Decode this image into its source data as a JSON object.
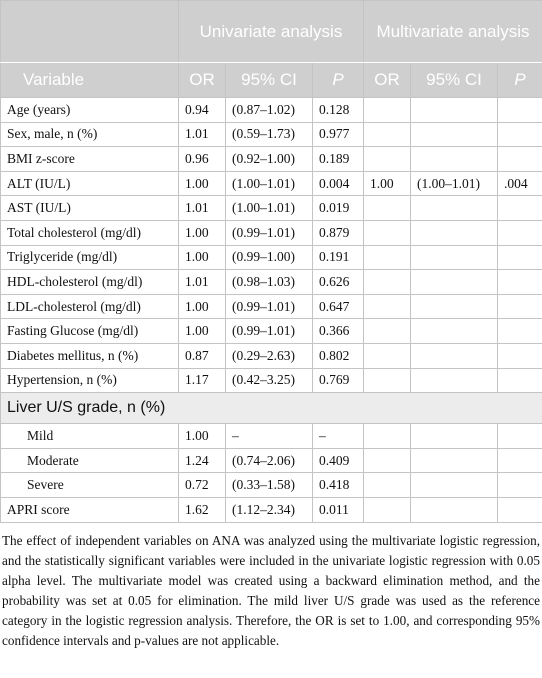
{
  "table": {
    "header": {
      "groups": [
        "Univariate analysis",
        "Multivariate analysis"
      ],
      "columns": [
        "Variable",
        "OR",
        "95% CI",
        "P",
        "OR",
        "95% CI",
        "P"
      ]
    },
    "rows": [
      [
        "Age (years)",
        "0.94",
        "(0.87–1.02)",
        "0.128",
        null,
        null,
        null
      ],
      [
        "Sex, male, n (%)",
        "1.01",
        "(0.59–1.73)",
        "0.977",
        null,
        null,
        null
      ],
      [
        "BMI z-score",
        "0.96",
        "(0.92–1.00)",
        "0.189",
        null,
        null,
        null
      ],
      [
        "ALT (IU/L)",
        "1.00",
        "(1.00–1.01)",
        "0.004",
        "1.00",
        "(1.00–1.01)",
        ".004"
      ],
      [
        "AST (IU/L)",
        "1.01",
        "(1.00–1.01)",
        "0.019",
        null,
        null,
        null
      ],
      [
        "Total cholesterol (mg/dl)",
        "1.00",
        "(0.99–1.01)",
        "0.879",
        null,
        null,
        null
      ],
      [
        "Triglyceride (mg/dl)",
        "1.00",
        "(0.99–1.00)",
        "0.191",
        null,
        null,
        null
      ],
      [
        "HDL-cholesterol (mg/dl)",
        "1.01",
        "(0.98–1.03)",
        "0.626",
        null,
        null,
        null
      ],
      [
        "LDL-cholesterol (mg/dl)",
        "1.00",
        "(0.99–1.01)",
        "0.647",
        null,
        null,
        null
      ],
      [
        "Fasting Glucose (mg/dl)",
        "1.00",
        "(0.99–1.01)",
        "0.366",
        null,
        null,
        null
      ],
      [
        "Diabetes mellitus, n (%)",
        "0.87",
        "(0.29–2.63)",
        "0.802",
        null,
        null,
        null
      ],
      [
        "Hypertension, n (%)",
        "1.17",
        "(0.42–3.25)",
        "0.769",
        null,
        null,
        null
      ]
    ],
    "group": {
      "label": "Liver U/S grade, n (%)",
      "rows": [
        [
          "Mild",
          "1.00",
          "–",
          "–",
          null,
          null,
          null
        ],
        [
          "Moderate",
          "1.24",
          "(0.74–2.06)",
          "0.409",
          null,
          null,
          null
        ],
        [
          "Severe",
          "0.72",
          "(0.33–1.58)",
          "0.418",
          null,
          null,
          null
        ]
      ]
    },
    "tail": [
      [
        "APRI score",
        "1.62",
        "(1.12–2.34)",
        "0.011",
        null,
        null,
        null
      ]
    ],
    "footnote": "The effect of independent variables on ANA was analyzed using the multivariate logistic regression, and the statistically significant variables were included in the univariate logistic regression with 0.05 alpha level. The multivariate model was created using a backward elimination method, and the probability was set at 0.05 for elimination. The mild liver U/S grade was used as the reference category in the logistic regression analysis. Therefore, the OR is set to 1.00, and corresponding 95% confidence intervals and p-values are not applicable."
  }
}
